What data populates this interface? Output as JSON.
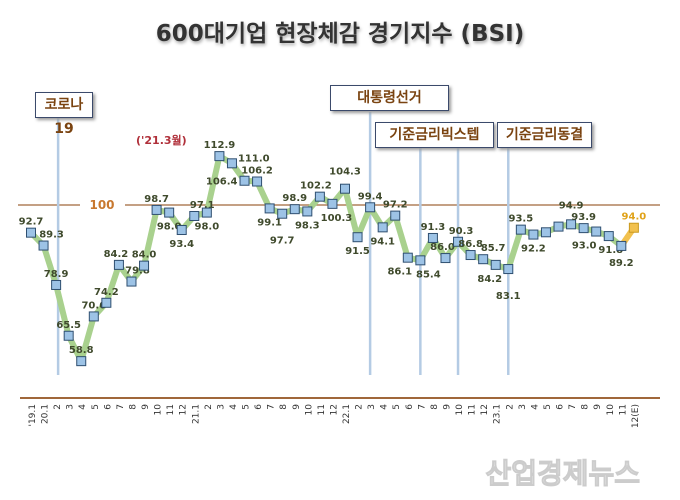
{
  "chart_data": {
    "type": "line",
    "title": "600대기업 현장체감 경기지수 (BSI)",
    "categories": [
      "'19.1",
      "20.1",
      "2",
      "3",
      "4",
      "5",
      "6",
      "7",
      "8",
      "9",
      "10",
      "11",
      "12",
      "21.1",
      "2",
      "3",
      "4",
      "5",
      "6",
      "7",
      "8",
      "9",
      "10",
      "11",
      "12",
      "22.1",
      "2",
      "3",
      "4",
      "5",
      "6",
      "7",
      "8",
      "9",
      "10",
      "11",
      "12",
      "23.1",
      "2",
      "3",
      "4",
      "5",
      "6",
      "7",
      "8",
      "9",
      "10",
      "11",
      "12(E)"
    ],
    "values": [
      92.7,
      89.3,
      78.9,
      65.5,
      58.8,
      70.6,
      74.2,
      84.2,
      79.8,
      84.0,
      98.7,
      98.0,
      93.4,
      97.1,
      98.0,
      112.9,
      111.0,
      106.4,
      106.2,
      99.1,
      97.7,
      98.9,
      98.3,
      102.2,
      100.3,
      104.3,
      91.5,
      99.4,
      94.1,
      97.2,
      86.1,
      85.4,
      91.3,
      86.0,
      90.3,
      86.8,
      85.7,
      84.2,
      83.1,
      93.5,
      92.2,
      92.8,
      94.3,
      94.9,
      93.9,
      93.0,
      91.8,
      89.2,
      94.0
    ],
    "data_labels": [
      "92.7",
      "89.3",
      "78.9",
      "65.5",
      "58.8",
      "70.6",
      "74.2",
      "84.2",
      "79.8",
      "84.0",
      "98.7",
      "98.0",
      "93.4",
      "97.1",
      "98.0",
      "112.9",
      "111.0",
      "106.4",
      "106.2",
      "99.1",
      "97.7",
      "98.9",
      "98.3",
      "102.2",
      "100.3",
      "104.3",
      "91.5",
      "99.4",
      "94.1",
      "97.2",
      "86.1",
      "85.4",
      "91.3",
      "86.0",
      "90.3",
      "86.8",
      "85.7",
      "84.2",
      "83.1",
      "93.5",
      "92.2",
      "",
      "",
      "94.9",
      "93.9",
      "93.0",
      "91.8",
      "89.2",
      "94.0"
    ],
    "reference_line": {
      "value": 100,
      "label": "100"
    },
    "annotations": [
      {
        "label": "코로나19",
        "category_index": 2
      },
      {
        "label": "대통령선거",
        "category_index": 27
      },
      {
        "label": "기준금리빅스텝",
        "category_index": 31
      },
      {
        "label": "",
        "category_index": 34
      },
      {
        "label": "기준금리동결",
        "category_index": 38
      }
    ],
    "peak_note": "('21.3월)",
    "estimate_index": 48,
    "colors": {
      "line": "#a9d18e",
      "marker": "#9dc3e6",
      "marker_border": "#2f4f70",
      "estimate": "#f2c14e",
      "estimate_label": "#e0a218",
      "label": "#3f4a2c",
      "reference": "#a0673a",
      "annotation_line": "#b4cbe4"
    },
    "grid": false
  },
  "watermark": "산업경제뉴스"
}
